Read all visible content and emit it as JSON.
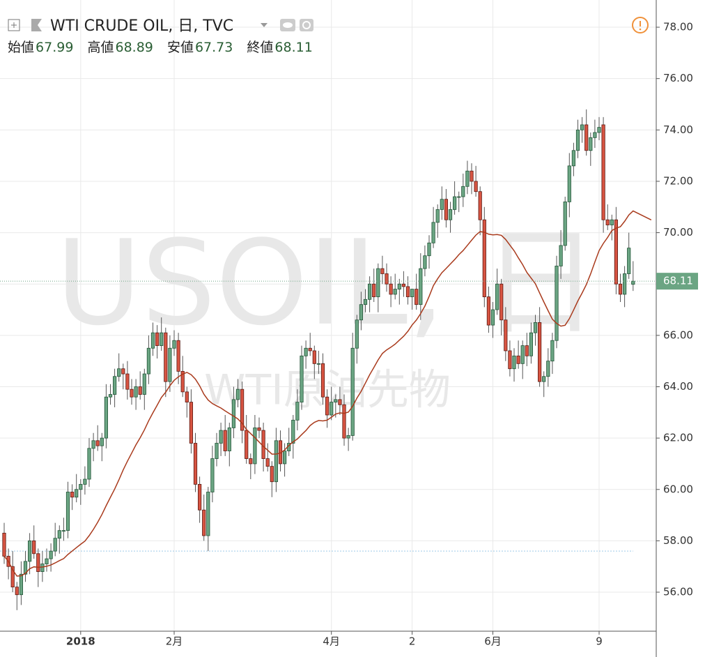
{
  "chart_data": {
    "type": "candlestick",
    "title": "WTI CRUDE OIL, 日, TVC",
    "ohlc_labels": [
      "始値",
      "高値",
      "安値",
      "終値"
    ],
    "watermark": [
      "USOIL, 日",
      "WTI原油先物"
    ],
    "categories": [
      null,
      null,
      null,
      null,
      null,
      null,
      null,
      null,
      null,
      null,
      null,
      null,
      null,
      null,
      null,
      null,
      null,
      null,
      "2018",
      null,
      null,
      null,
      null,
      null,
      null,
      null,
      null,
      null,
      null,
      null,
      null,
      null,
      null,
      null,
      null,
      null,
      null,
      null,
      null,
      null,
      "2月",
      null,
      null,
      null,
      null,
      null,
      null,
      null,
      null,
      null,
      null,
      null,
      null,
      null,
      null,
      null,
      null,
      null,
      null,
      null,
      null,
      null,
      null,
      null,
      null,
      null,
      null,
      null,
      null,
      null,
      null,
      null,
      null,
      null,
      null,
      null,
      null,
      "4月",
      null,
      null,
      null,
      null,
      null,
      null,
      null,
      null,
      null,
      null,
      null,
      null,
      null,
      null,
      null,
      null,
      null,
      null,
      "2",
      null,
      null,
      null,
      null,
      null,
      null,
      null,
      null,
      null,
      null,
      null,
      null,
      null,
      null,
      null,
      null,
      null,
      null,
      "6月",
      null,
      null,
      null,
      null,
      null,
      null,
      null,
      null,
      null,
      null,
      null,
      null,
      null,
      null,
      null,
      null,
      null,
      null,
      null,
      null,
      null,
      null,
      null,
      null,
      "9",
      null,
      null,
      null,
      null,
      null,
      null,
      null,
      null
    ],
    "open": [
      58.3,
      57.4,
      57.0,
      56.2,
      55.9,
      56.7,
      57.2,
      58.0,
      57.5,
      56.8,
      57.1,
      57.3,
      57.6,
      58.1,
      58.4,
      58.4,
      59.9,
      59.7,
      60.0,
      60.2,
      60.4,
      61.6,
      61.9,
      61.7,
      62.0,
      63.6,
      63.7,
      64.4,
      64.7,
      64.5,
      63.9,
      63.6,
      64.0,
      63.7,
      64.5,
      65.5,
      66.1,
      65.6,
      66.1,
      64.2,
      65.5,
      65.8,
      64.6,
      63.8,
      63.4,
      61.8,
      60.2,
      59.2,
      58.2,
      59.9,
      61.2,
      61.8,
      62.3,
      61.5,
      62.4,
      63.5,
      63.9,
      62.3,
      61.2,
      61.0,
      62.4,
      62.3,
      61.2,
      60.9,
      60.3,
      61.9,
      61.0,
      61.5,
      61.8,
      62.7,
      63.4,
      65.2,
      65.5,
      65.4,
      64.9,
      64.9,
      63.6,
      62.9,
      63.4,
      63.5,
      63.3,
      62.0,
      62.1,
      65.5,
      66.6,
      67.2,
      67.4,
      68.0,
      67.5,
      68.6,
      68.4,
      68.0,
      67.6,
      67.8,
      68.0,
      67.9,
      67.5,
      67.8,
      67.2,
      68.6,
      69.1,
      69.6,
      70.4,
      70.9,
      71.3,
      70.5,
      70.9,
      71.4,
      71.4,
      71.8,
      72.4,
      72.0,
      71.6,
      70.5,
      67.5,
      66.4,
      67.0,
      68.0,
      66.6,
      65.4,
      64.7,
      65.2,
      64.9,
      65.6,
      65.2,
      66.1,
      66.5,
      64.2,
      64.4,
      65.0,
      65.8,
      68.7,
      69.5,
      71.2,
      72.6,
      73.2,
      74.0,
      74.2,
      73.2,
      73.7,
      73.9,
      74.2,
      70.5,
      70.3,
      70.5,
      68.0,
      67.6,
      68.4,
      67.99
    ],
    "high": [
      58.7,
      57.7,
      57.6,
      56.4,
      57.2,
      57.6,
      58.3,
      58.6,
      57.7,
      57.6,
      57.7,
      57.9,
      58.7,
      58.6,
      58.9,
      60.3,
      60.2,
      60.6,
      60.4,
      60.9,
      62.0,
      62.2,
      62.5,
      62.2,
      64.1,
      64.1,
      64.7,
      65.3,
      64.9,
      65.0,
      64.3,
      64.3,
      64.6,
      64.7,
      66.0,
      66.5,
      66.4,
      66.7,
      66.3,
      66.0,
      66.2,
      66.1,
      65.2,
      64.0,
      63.9,
      62.2,
      60.5,
      59.8,
      60.1,
      61.7,
      62.2,
      62.6,
      62.9,
      62.6,
      64.0,
      64.3,
      64.2,
      62.9,
      61.4,
      62.9,
      62.8,
      62.6,
      61.8,
      61.1,
      62.4,
      62.3,
      61.8,
      62.4,
      62.9,
      63.9,
      65.6,
      65.8,
      66.1,
      65.6,
      65.4,
      65.3,
      63.9,
      64.0,
      63.7,
      64.0,
      63.7,
      62.4,
      66.1,
      66.8,
      67.7,
      67.8,
      68.3,
      68.6,
      68.8,
      69.1,
      68.8,
      68.3,
      68.4,
      68.2,
      68.5,
      68.3,
      67.8,
      68.4,
      69.2,
      69.5,
      69.9,
      71.0,
      71.1,
      71.8,
      71.7,
      71.2,
      72.0,
      71.6,
      72.3,
      72.8,
      72.7,
      72.6,
      71.8,
      71.0,
      67.9,
      67.3,
      68.6,
      68.2,
      67.1,
      65.8,
      65.5,
      65.8,
      65.8,
      66.1,
      66.5,
      66.8,
      67.1,
      64.6,
      65.5,
      66.1,
      69.1,
      70.1,
      71.4,
      73.1,
      73.5,
      74.4,
      74.5,
      74.8,
      73.9,
      74.4,
      74.5,
      74.5,
      71.1,
      70.7,
      71.0,
      68.4,
      68.7,
      70.0,
      68.89
    ],
    "low": [
      57.1,
      56.5,
      56.0,
      55.3,
      55.5,
      56.4,
      56.7,
      57.3,
      56.2,
      56.4,
      56.8,
      56.8,
      57.4,
      57.5,
      58.0,
      58.1,
      59.2,
      59.5,
      59.4,
      59.8,
      60.1,
      61.1,
      61.5,
      61.1,
      61.6,
      63.3,
      63.2,
      64.2,
      63.9,
      63.5,
      63.3,
      63.1,
      63.5,
      63.1,
      64.1,
      65.2,
      65.1,
      65.4,
      63.6,
      63.8,
      65.2,
      64.1,
      63.6,
      62.8,
      61.4,
      59.9,
      58.7,
      58.0,
      57.6,
      59.5,
      60.9,
      61.3,
      61.3,
      60.9,
      62.0,
      63.2,
      61.8,
      61.0,
      60.4,
      60.6,
      62.0,
      60.7,
      60.7,
      59.7,
      59.9,
      60.7,
      60.5,
      61.3,
      61.2,
      62.3,
      63.1,
      64.7,
      65.2,
      64.3,
      64.5,
      63.3,
      62.4,
      62.7,
      62.8,
      62.9,
      61.7,
      61.5,
      61.9,
      64.9,
      66.2,
      66.9,
      66.9,
      67.3,
      66.9,
      68.0,
      67.7,
      67.1,
      67.4,
      67.2,
      67.5,
      67.2,
      67.0,
      67.0,
      66.6,
      68.3,
      68.6,
      69.4,
      69.8,
      70.5,
      70.2,
      70.0,
      70.7,
      70.8,
      71.0,
      71.5,
      71.5,
      71.4,
      69.9,
      67.1,
      66.1,
      65.9,
      66.8,
      66.0,
      65.0,
      64.4,
      64.2,
      64.7,
      64.3,
      64.8,
      64.9,
      65.6,
      64.0,
      63.6,
      64.0,
      64.5,
      65.5,
      68.2,
      69.3,
      70.6,
      72.2,
      72.9,
      73.5,
      73.0,
      72.6,
      73.3,
      73.6,
      70.0,
      70.1,
      69.7,
      67.6,
      67.3,
      67.1,
      68.2,
      67.73
    ],
    "close": [
      57.4,
      57.0,
      56.2,
      55.9,
      56.7,
      57.2,
      58.0,
      57.5,
      56.8,
      57.1,
      57.3,
      57.6,
      58.1,
      58.4,
      58.4,
      59.9,
      59.7,
      60.0,
      60.2,
      60.4,
      61.6,
      61.9,
      61.7,
      62.0,
      63.6,
      63.7,
      64.4,
      64.7,
      64.5,
      63.9,
      63.6,
      64.0,
      63.7,
      64.5,
      65.5,
      66.1,
      65.6,
      66.1,
      64.2,
      65.5,
      65.8,
      64.6,
      63.8,
      63.4,
      61.8,
      60.2,
      59.2,
      58.2,
      59.9,
      61.2,
      61.8,
      62.3,
      61.5,
      62.4,
      63.5,
      63.9,
      62.3,
      61.2,
      61.0,
      62.4,
      62.3,
      61.2,
      60.9,
      60.3,
      61.9,
      61.0,
      61.5,
      61.8,
      62.7,
      63.4,
      65.2,
      65.5,
      65.4,
      64.9,
      64.9,
      63.6,
      62.9,
      63.4,
      63.5,
      63.3,
      62.0,
      62.1,
      65.5,
      66.6,
      67.2,
      67.4,
      68.0,
      67.5,
      68.6,
      68.4,
      68.0,
      67.6,
      67.8,
      68.0,
      67.9,
      67.5,
      67.8,
      67.2,
      68.6,
      69.1,
      69.6,
      70.4,
      70.9,
      71.3,
      70.5,
      70.9,
      71.4,
      71.4,
      71.8,
      72.4,
      72.0,
      71.6,
      70.5,
      67.5,
      66.4,
      67.0,
      68.0,
      66.6,
      65.4,
      64.7,
      65.2,
      64.9,
      65.6,
      65.2,
      66.1,
      66.5,
      64.2,
      64.4,
      65.0,
      65.8,
      68.7,
      69.5,
      71.2,
      72.6,
      73.2,
      74.0,
      74.2,
      73.2,
      73.7,
      73.9,
      74.1,
      70.5,
      70.3,
      70.5,
      68.0,
      67.6,
      68.4,
      69.4,
      68.11
    ],
    "up_color": "#6ba583",
    "down_color": "#d75442",
    "ma_period": 20,
    "ma_color": "#a93a1c",
    "price_line": 57.6,
    "ylim": [
      54.48,
      79.06
    ],
    "yticks": [
      {
        "value": 56,
        "label": "56.00"
      },
      {
        "value": 58,
        "label": "58.00"
      },
      {
        "value": 60,
        "label": "60.00"
      },
      {
        "value": 62,
        "label": "62.00"
      },
      {
        "value": 64,
        "label": "64.00"
      },
      {
        "value": 66,
        "label": "66.00"
      },
      {
        "value": 68,
        "label": "68.00"
      },
      {
        "value": 70,
        "label": "70.00"
      },
      {
        "value": 72,
        "label": "72.00"
      },
      {
        "value": 74,
        "label": "74.00"
      },
      {
        "value": 76,
        "label": "76.00"
      },
      {
        "value": 78,
        "label": "78.00"
      }
    ],
    "grid": true
  }
}
